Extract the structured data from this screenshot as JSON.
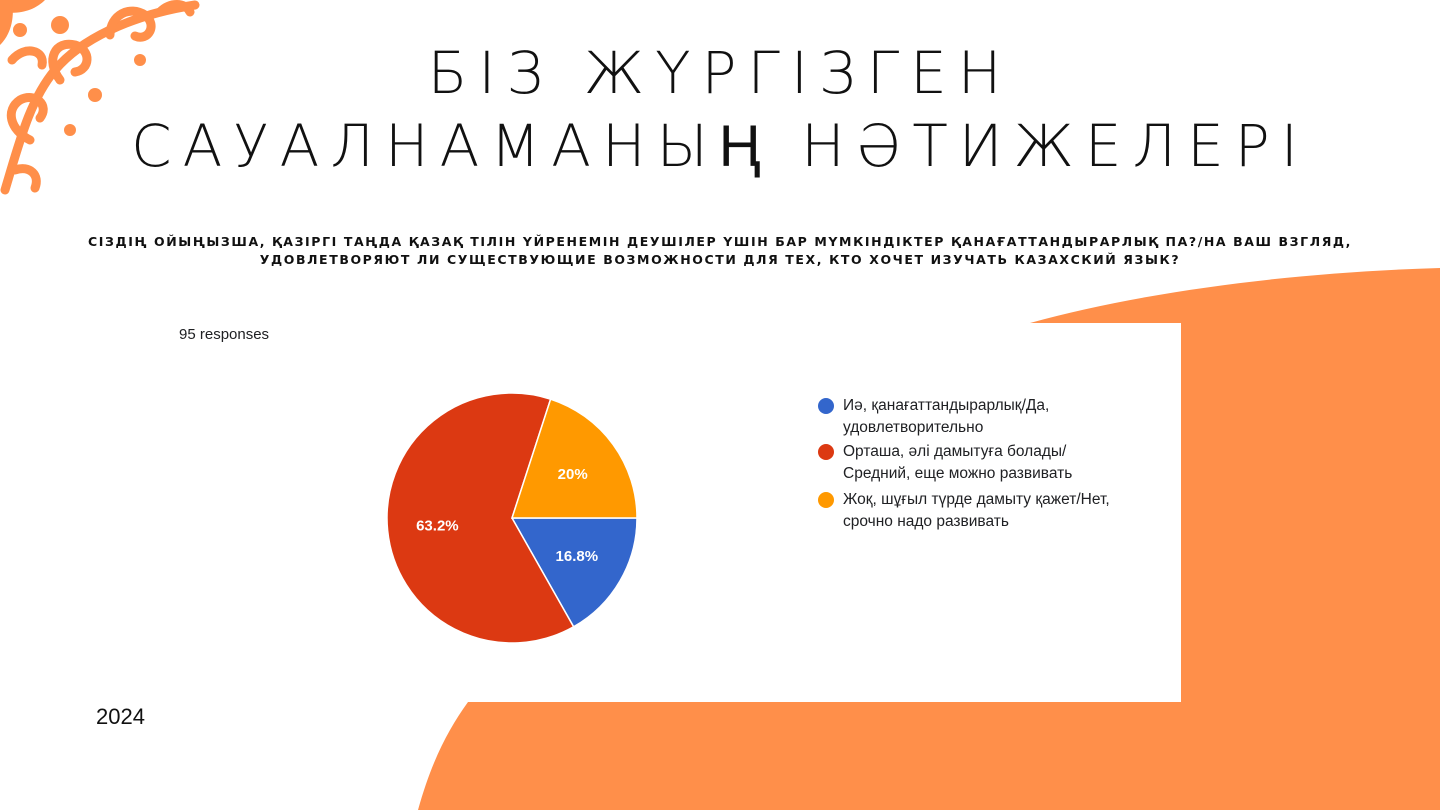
{
  "slide": {
    "title_line1": "БІЗ ЖҮРГІЗГЕН",
    "title_line2": "САУАЛНАМАНЫҢ НӘТИЖЕЛЕРІ",
    "question_line1": "СІЗДІҢ ОЙЫҢЫЗША, ҚАЗІРГІ ТАҢДА ҚАЗАҚ ТІЛІН ҮЙРЕНЕМІН ДЕУШІЛЕР ҮШІН БАР МҮМКІНДІКТЕР ҚАНАҒАТТАНДЫРАРЛЫҚ ПА?/НА ВАШ ВЗГЛЯД,",
    "question_line2": "УДОВЛЕТВОРЯЮТ ЛИ СУЩЕСТВУЮЩИЕ ВОЗМОЖНОСТИ ДЛЯ ТЕХ, КТО ХОЧЕТ ИЗУЧАТЬ КАЗАХСКИЙ ЯЗЫК?",
    "year": "2024",
    "accent_color": "#ff8f4a",
    "ornament_color": "#ff8f4a"
  },
  "chart_data": {
    "type": "pie",
    "responses_label": "95 responses",
    "legend_position": "right",
    "slices": [
      {
        "label_line1": "Иә, қанағаттандырарлық/Да,",
        "label_line2": "удовлетворительно",
        "value": 16.8,
        "value_label": "16.8%",
        "color": "#3366cc"
      },
      {
        "label_line1": "Орташа, әлі дамытуға болады/",
        "label_line2": "Средний, еще можно развивать",
        "value": 63.2,
        "value_label": "63.2%",
        "color": "#dc3912"
      },
      {
        "label_line1": "Жоқ, шұғыл түрде дамыту қажет/Нет,",
        "label_line2": "срочно надо развивать",
        "value": 20,
        "value_label": "20%",
        "color": "#ff9900"
      }
    ]
  }
}
